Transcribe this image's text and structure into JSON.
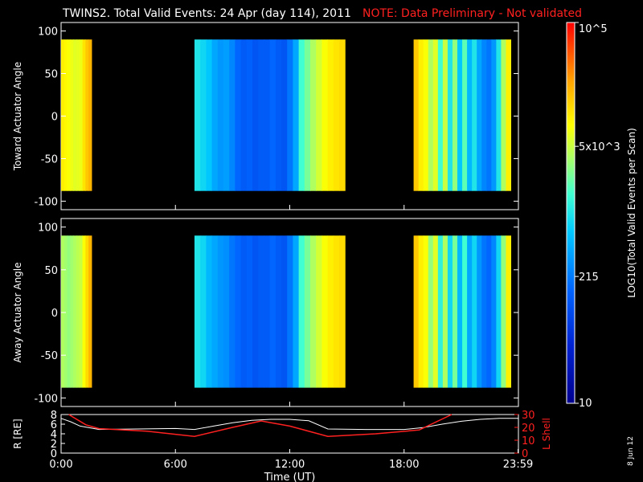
{
  "header": {
    "title": "TWINS2. Total Valid Events: 24 Apr (day 114), 2011",
    "note": "NOTE: Data Preliminary - Not validated"
  },
  "side_date": "8 Jun 12",
  "colors": {
    "background": "#000000",
    "axes": "#ffffff",
    "note": "#ff2020",
    "lshell_line": "#ff2020",
    "r_line": "#ffffff"
  },
  "chart_data": [
    {
      "type": "heatmap",
      "name": "toward-panel",
      "ylabel": "Toward Actuator Angle",
      "xlabel": "",
      "ylim": [
        -110,
        110
      ],
      "yticks": [
        "100",
        "50",
        "0",
        "-50",
        "-100"
      ],
      "ytick_values": [
        100,
        50,
        0,
        -50,
        -100
      ],
      "data_angle_range": [
        -88,
        90
      ],
      "segments": [
        {
          "start_hr": 0.0,
          "end_hr": 1.6,
          "log_events": [
            4.0,
            3.95,
            3.9,
            3.85,
            3.8,
            3.82,
            3.85,
            4.05,
            4.2,
            4.3
          ]
        },
        {
          "start_hr": 7.0,
          "end_hr": 14.9,
          "log_events": [
            3.0,
            2.9,
            2.8,
            2.6,
            2.5,
            2.55,
            2.4,
            2.2,
            2.1,
            2.15,
            2.05,
            2.1,
            2.1,
            2.2,
            2.1,
            2.05,
            2.3,
            2.6,
            3.2,
            3.4,
            3.6,
            3.75,
            3.9,
            4.0,
            4.05,
            4.1
          ]
        },
        {
          "start_hr": 18.5,
          "end_hr": 23.6,
          "log_events": [
            4.2,
            4.0,
            3.9,
            3.6,
            3.8,
            3.2,
            3.7,
            3.0,
            3.5,
            2.8,
            3.3,
            2.7,
            3.0,
            2.6,
            2.4,
            2.3,
            2.5,
            3.0,
            3.6,
            4.0
          ]
        }
      ]
    },
    {
      "type": "heatmap",
      "name": "away-panel",
      "ylabel": "Away Actuator Angle",
      "xlabel": "",
      "ylim": [
        -110,
        110
      ],
      "yticks": [
        "100",
        "50",
        "0",
        "-50",
        "-100"
      ],
      "ytick_values": [
        100,
        50,
        0,
        -50,
        -100
      ],
      "data_angle_range": [
        -88,
        90
      ],
      "segments": [
        {
          "start_hr": 0.0,
          "end_hr": 1.6,
          "log_events": [
            3.6,
            3.55,
            3.5,
            3.55,
            3.6,
            3.65,
            3.7,
            3.9,
            4.1,
            4.3
          ]
        },
        {
          "start_hr": 7.0,
          "end_hr": 14.9,
          "log_events": [
            3.0,
            2.9,
            2.7,
            2.6,
            2.5,
            2.45,
            2.3,
            2.2,
            2.1,
            2.15,
            2.05,
            2.1,
            2.1,
            2.2,
            2.1,
            2.05,
            2.3,
            2.6,
            3.2,
            3.4,
            3.6,
            3.75,
            3.9,
            4.0,
            4.05,
            4.1
          ]
        },
        {
          "start_hr": 18.5,
          "end_hr": 23.6,
          "log_events": [
            4.2,
            4.0,
            3.9,
            3.5,
            3.8,
            3.1,
            3.6,
            2.9,
            3.4,
            2.7,
            3.2,
            2.6,
            2.9,
            2.5,
            2.3,
            2.2,
            2.4,
            2.9,
            3.5,
            4.0
          ]
        }
      ]
    },
    {
      "type": "line",
      "name": "orbit-panel",
      "xlabel": "Time (UT)",
      "xticks": [
        "0:00",
        "6:00",
        "12:00",
        "18:00",
        "23:59"
      ],
      "xtick_values": [
        0,
        6,
        12,
        18,
        23.98
      ],
      "xlim": [
        0,
        24
      ],
      "ylabel_left": "R [RE]",
      "ylabel_right": "L Shell",
      "yticks_left": [
        "8",
        "6",
        "4",
        "2",
        "0"
      ],
      "yticks_left_values": [
        8,
        6,
        4,
        2,
        0
      ],
      "ylim_left": [
        0,
        8
      ],
      "yticks_right": [
        "30",
        "20",
        "10",
        "0"
      ],
      "yticks_right_values": [
        30,
        20,
        10,
        0
      ],
      "ylim_right": [
        0,
        30
      ],
      "series": [
        {
          "name": "R [RE]",
          "axis": "left",
          "color": "#ffffff",
          "x": [
            0,
            0.5,
            1,
            2,
            4,
            6,
            7,
            8,
            9,
            10,
            11,
            12,
            13,
            14,
            16,
            18,
            19,
            20,
            21,
            22,
            23,
            23.98
          ],
          "y": [
            7.2,
            6.5,
            5.6,
            4.9,
            5.0,
            5.1,
            4.9,
            5.6,
            6.3,
            6.8,
            7.0,
            7.0,
            6.7,
            5.0,
            4.9,
            4.9,
            5.3,
            6.0,
            6.6,
            7.0,
            7.2,
            7.2
          ]
        },
        {
          "name": "L Shell",
          "axis": "right",
          "color": "#ff2020",
          "x": [
            0.4,
            1.3,
            2.0,
            4.5,
            7.0,
            9.0,
            10.5,
            12.0,
            14.0,
            16.5,
            18.8,
            20.5
          ],
          "y": [
            31,
            22,
            19,
            17,
            13,
            20,
            25,
            21,
            13,
            15,
            18,
            31
          ]
        }
      ]
    }
  ],
  "colorbar": {
    "label": "LOG10(Total Valid Events per Scan)",
    "ticks": [
      {
        "text": "10^5",
        "log": 5
      },
      {
        "text": "5x10^3",
        "log": 3.699
      },
      {
        "text": "215",
        "log": 2.332
      },
      {
        "text": "10",
        "log": 1
      }
    ],
    "range_log": [
      1,
      5
    ]
  }
}
